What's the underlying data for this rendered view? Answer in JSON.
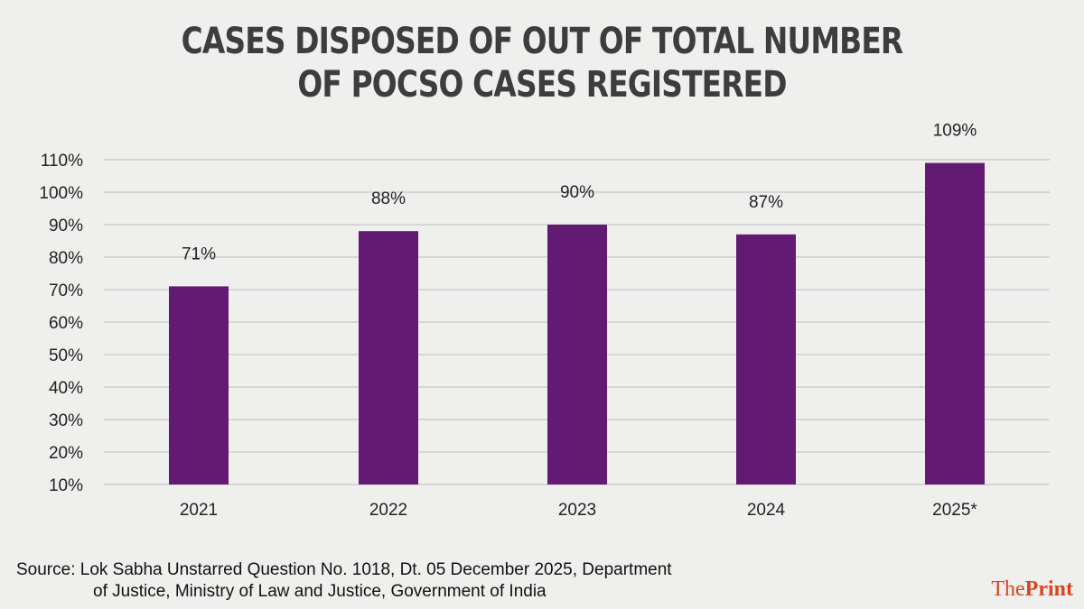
{
  "chart_data": {
    "type": "bar",
    "title": [
      "CASES DISPOSED OF OUT OF TOTAL NUMBER",
      "OF POCSO CASES REGISTERED"
    ],
    "categories": [
      "2021",
      "2022",
      "2023",
      "2024",
      "2025*"
    ],
    "values": [
      71,
      88,
      90,
      87,
      109
    ],
    "data_labels": [
      "71%",
      "88%",
      "90%",
      "87%",
      "109%"
    ],
    "yticks": [
      10,
      20,
      30,
      40,
      50,
      60,
      70,
      80,
      90,
      100,
      110
    ],
    "ytick_labels": [
      "10%",
      "20%",
      "30%",
      "40%",
      "50%",
      "60%",
      "70%",
      "80%",
      "90%",
      "100%",
      "110%"
    ],
    "ylim": [
      10,
      110
    ],
    "grid": true,
    "bar_color": "#621a72",
    "xlabel": "",
    "ylabel": ""
  },
  "source": {
    "line1": "Source: Lok Sabha Unstarred Question No. 1018, Dt. 05 December 2025, Department",
    "line2": "of Justice, Ministry of Law and Justice, Government of India"
  },
  "logo": {
    "part1": "The",
    "part2": "Print"
  }
}
